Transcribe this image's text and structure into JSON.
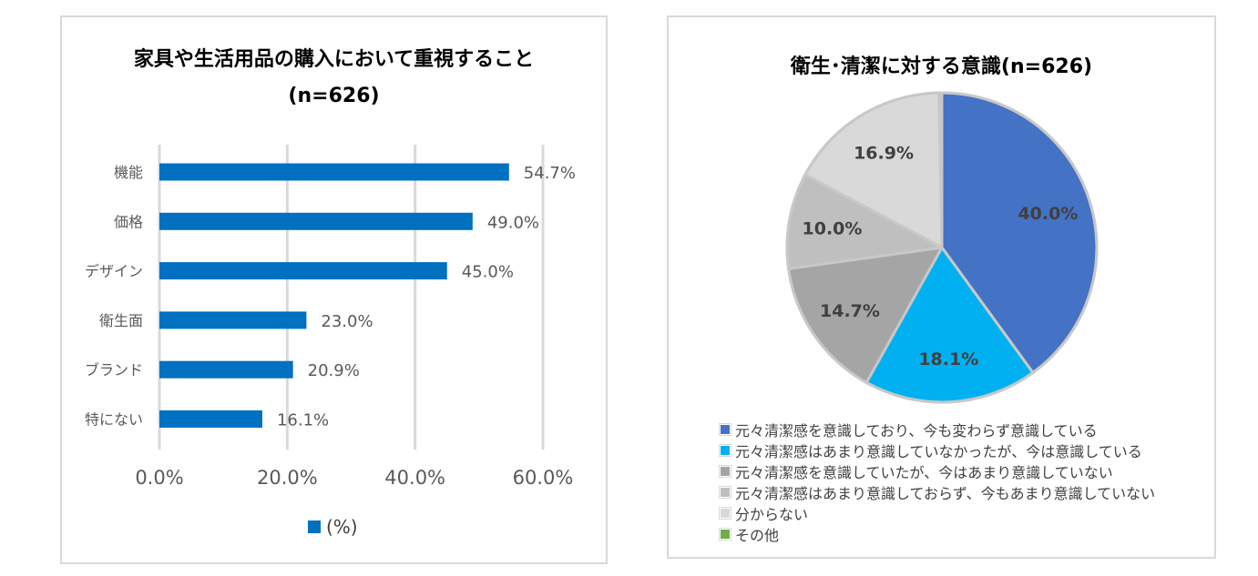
{
  "left_chart": {
    "title_line1": "家具や生活用品の購入において重視すること",
    "title_line2": "(n=626)",
    "legend_label": "(%)",
    "bar_color": "#0070c0"
  },
  "right_chart": {
    "title": "衛生･清潔に対する意識(n=626)"
  },
  "chart_data": [
    {
      "type": "bar",
      "orientation": "horizontal",
      "title": "家具や生活用品の購入において重視すること (n=626)",
      "categories": [
        "機能",
        "価格",
        "デザイン",
        "衛生面",
        "ブランド",
        "特にない"
      ],
      "series": [
        {
          "name": "(%)",
          "values": [
            54.7,
            49.0,
            45.0,
            23.0,
            20.9,
            16.1
          ]
        }
      ],
      "value_labels": [
        "54.7%",
        "49.0%",
        "45.0%",
        "23.0%",
        "20.9%",
        "16.1%"
      ],
      "xlim": [
        0,
        60
      ],
      "xticks": [
        "0.0%",
        "20.0%",
        "40.0%",
        "60.0%"
      ],
      "grid": true,
      "legend": "bottom"
    },
    {
      "type": "pie",
      "title": "衛生･清潔に対する意識(n=626)",
      "slices": [
        {
          "label": "元々清潔感を意識しており、今も変わらず意識している",
          "value": 40.0,
          "display": "40.0%",
          "color": "#4472c4"
        },
        {
          "label": "元々清潔感はあまり意識していなかったが、今は意識している",
          "value": 18.1,
          "display": "18.1%",
          "color": "#00b0f0"
        },
        {
          "label": "元々清潔感を意識していたが、今はあまり意識していない",
          "value": 14.7,
          "display": "14.7%",
          "color": "#a5a5a5"
        },
        {
          "label": "元々清潔感はあまり意識しておらず、今もあまり意識していない",
          "value": 10.0,
          "display": "10.0%",
          "color": "#bfbfbf"
        },
        {
          "label": "分からない",
          "value": 16.9,
          "display": "16.9%",
          "color": "#d9d9d9"
        },
        {
          "label": "その他",
          "value": 0.3,
          "display": "",
          "color": "#70ad47"
        }
      ],
      "legend": "bottom-left"
    }
  ]
}
